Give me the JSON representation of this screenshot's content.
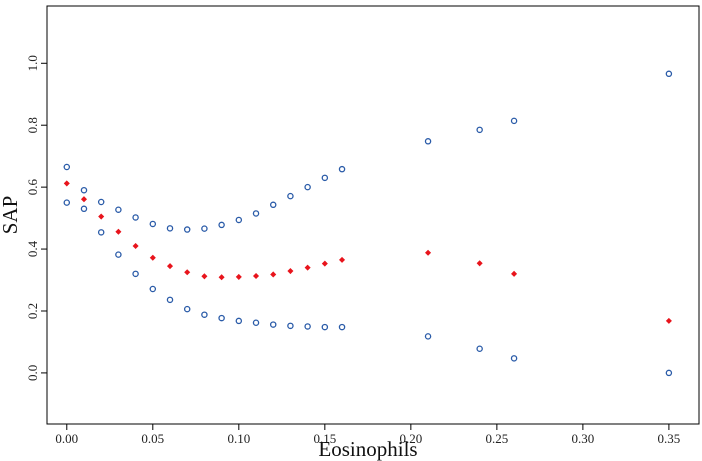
{
  "chart_data": {
    "type": "scatter",
    "xlabel": "Eosinophils",
    "ylabel": "SAP",
    "xlim": [
      -0.0115,
      0.3675
    ],
    "ylim": [
      -0.165,
      1.185
    ],
    "x_ticks": [
      0.0,
      0.05,
      0.1,
      0.15,
      0.2,
      0.25,
      0.3,
      0.35
    ],
    "x_tick_labels": [
      "0.00",
      "0.05",
      "0.10",
      "0.15",
      "0.20",
      "0.25",
      "0.30",
      "0.35"
    ],
    "y_ticks": [
      0.0,
      0.2,
      0.4,
      0.6,
      0.8,
      1.0
    ],
    "y_tick_labels": [
      "0.0",
      "0.2",
      "0.4",
      "0.6",
      "0.8",
      "1.0"
    ],
    "grid": false,
    "legend": "none",
    "series": [
      {
        "marker": "filled-diamond",
        "color": "#e8141c",
        "points": [
          [
            0.0,
            0.612
          ],
          [
            0.01,
            0.561
          ],
          [
            0.02,
            0.505
          ],
          [
            0.03,
            0.456
          ],
          [
            0.04,
            0.41
          ],
          [
            0.05,
            0.372
          ],
          [
            0.06,
            0.345
          ],
          [
            0.07,
            0.325
          ],
          [
            0.08,
            0.312
          ],
          [
            0.09,
            0.309
          ],
          [
            0.1,
            0.31
          ],
          [
            0.11,
            0.313
          ],
          [
            0.12,
            0.318
          ],
          [
            0.13,
            0.329
          ],
          [
            0.14,
            0.34
          ],
          [
            0.15,
            0.353
          ],
          [
            0.16,
            0.365
          ],
          [
            0.21,
            0.388
          ],
          [
            0.24,
            0.354
          ],
          [
            0.26,
            0.32
          ],
          [
            0.35,
            0.168
          ]
        ]
      },
      {
        "marker": "open-circle",
        "color": "#2a5ba8",
        "points": [
          [
            0.0,
            0.665
          ],
          [
            0.01,
            0.59
          ],
          [
            0.02,
            0.552
          ],
          [
            0.03,
            0.527
          ],
          [
            0.04,
            0.502
          ],
          [
            0.05,
            0.481
          ],
          [
            0.06,
            0.467
          ],
          [
            0.07,
            0.463
          ],
          [
            0.08,
            0.466
          ],
          [
            0.09,
            0.478
          ],
          [
            0.1,
            0.494
          ],
          [
            0.11,
            0.515
          ],
          [
            0.12,
            0.543
          ],
          [
            0.13,
            0.571
          ],
          [
            0.14,
            0.6
          ],
          [
            0.15,
            0.63
          ],
          [
            0.16,
            0.658
          ],
          [
            0.21,
            0.748
          ],
          [
            0.24,
            0.785
          ],
          [
            0.26,
            0.814
          ],
          [
            0.35,
            0.966
          ]
        ]
      },
      {
        "marker": "open-circle",
        "color": "#2a5ba8",
        "points": [
          [
            0.0,
            0.55
          ],
          [
            0.01,
            0.53
          ],
          [
            0.02,
            0.454
          ],
          [
            0.03,
            0.382
          ],
          [
            0.04,
            0.32
          ],
          [
            0.05,
            0.271
          ],
          [
            0.06,
            0.236
          ],
          [
            0.07,
            0.206
          ],
          [
            0.08,
            0.188
          ],
          [
            0.09,
            0.177
          ],
          [
            0.1,
            0.168
          ],
          [
            0.11,
            0.162
          ],
          [
            0.12,
            0.156
          ],
          [
            0.13,
            0.152
          ],
          [
            0.14,
            0.15
          ],
          [
            0.15,
            0.148
          ],
          [
            0.16,
            0.148
          ],
          [
            0.21,
            0.118
          ],
          [
            0.24,
            0.078
          ],
          [
            0.26,
            0.047
          ],
          [
            0.35,
            0.0
          ]
        ]
      }
    ]
  }
}
